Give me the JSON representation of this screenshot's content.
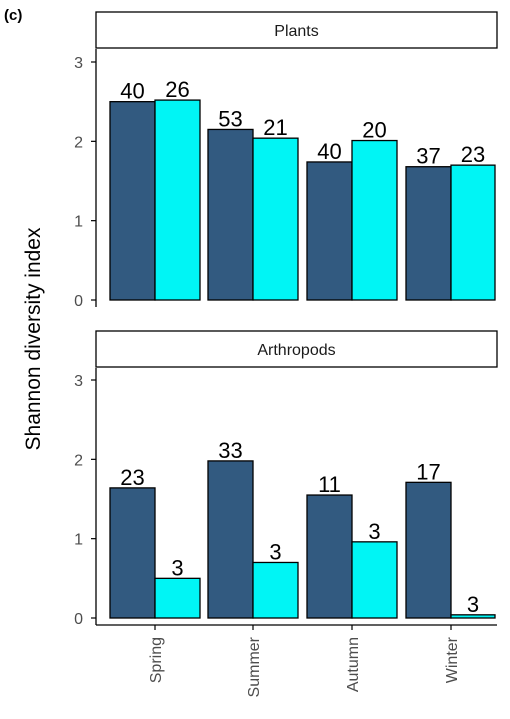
{
  "panel_label": "(c)",
  "ylabel": "Shannon diversity index",
  "colors": {
    "series_a": "#325a80",
    "series_b": "#00f5f5",
    "bar_stroke": "#000000",
    "axis": "#000000",
    "tick_text": "#4d4d4d"
  },
  "chart_data": [
    {
      "type": "bar",
      "title": "Plants",
      "categories": [
        "Spring",
        "Summer",
        "Autumn",
        "Winter"
      ],
      "series": [
        {
          "values": [
            2.5,
            2.15,
            1.74,
            1.68
          ],
          "labels": [
            "40",
            "53",
            "40",
            "37"
          ]
        },
        {
          "values": [
            2.52,
            2.04,
            2.01,
            1.7
          ],
          "labels": [
            "26",
            "21",
            "20",
            "23"
          ]
        }
      ],
      "ylim": [
        0,
        3
      ],
      "yticks": [
        "0",
        "1",
        "2",
        "3"
      ],
      "grid": false
    },
    {
      "type": "bar",
      "title": "Arthropods",
      "categories": [
        "Spring",
        "Summer",
        "Autumn",
        "Winter"
      ],
      "series": [
        {
          "values": [
            1.64,
            1.98,
            1.55,
            1.71
          ],
          "labels": [
            "23",
            "33",
            "11",
            "17"
          ]
        },
        {
          "values": [
            0.5,
            0.7,
            0.96,
            0.04
          ],
          "labels": [
            "3",
            "3",
            "3",
            "3"
          ]
        }
      ],
      "ylim": [
        0,
        3
      ],
      "yticks": [
        "0",
        "1",
        "2",
        "3"
      ],
      "grid": false
    }
  ]
}
